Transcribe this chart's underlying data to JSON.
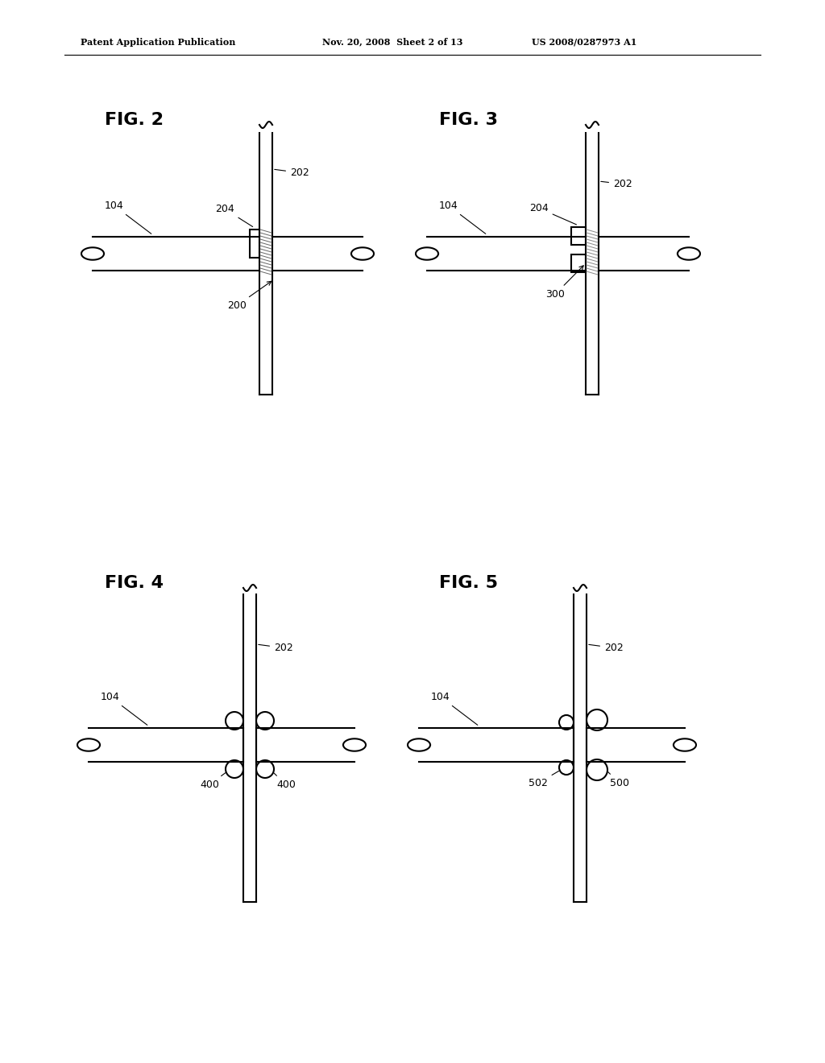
{
  "bg_color": "#ffffff",
  "line_color": "#000000",
  "hatch_color": "#555555",
  "header_left": "Patent Application Publication",
  "header_mid": "Nov. 20, 2008  Sheet 2 of 13",
  "header_right": "US 2008/0287973 A1",
  "fig2_label": "FIG. 2",
  "fig3_label": "FIG. 3",
  "fig4_label": "FIG. 4",
  "fig5_label": "FIG. 5"
}
